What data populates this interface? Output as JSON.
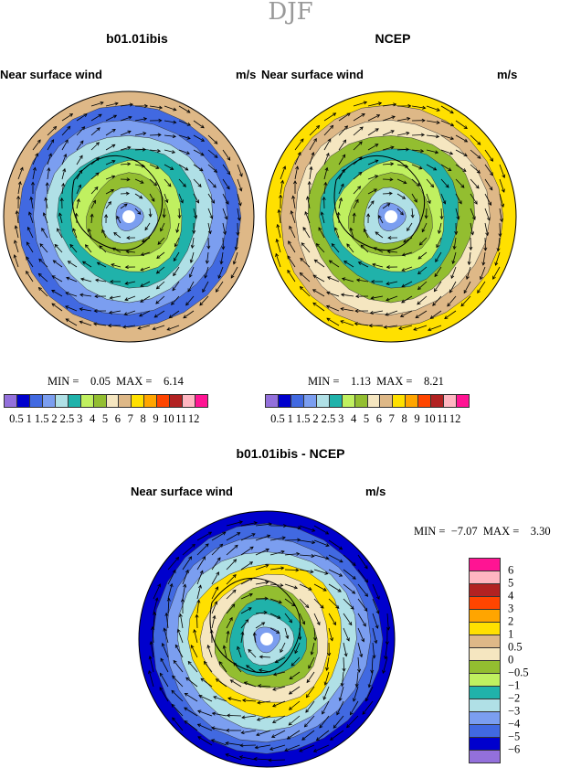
{
  "title": "DJF",
  "panels": [
    {
      "title": "b01.01ibis",
      "left_sub": "Near surface wind",
      "right_sub": "m/s",
      "min_label": "MIN =",
      "min": "0.05",
      "max_label": "MAX =",
      "max": "6.14"
    },
    {
      "title": "NCEP",
      "left_sub": "Near surface wind",
      "right_sub": "m/s",
      "min_label": "MIN =",
      "min": "1.13",
      "max_label": "MAX =",
      "max": "8.21"
    },
    {
      "title": "b01.01ibis - NCEP",
      "left_sub": "Near surface wind",
      "right_sub": "m/s",
      "min_label": "MIN =",
      "min": "−7.07",
      "max_label": "MAX =",
      "max": "3.30"
    }
  ],
  "colorbar": {
    "colors": [
      "#9370DB",
      "#0000CD",
      "#4169E1",
      "#7B9EF0",
      "#B0E0E6",
      "#20B2AA",
      "#C0F060",
      "#93BE30",
      "#F5E6C0",
      "#DEB887",
      "#FFE000",
      "#FFA500",
      "#FF4500",
      "#B22222",
      "#FFB6C1",
      "#FF1493"
    ],
    "labels": [
      "0.5",
      "1",
      "1.5",
      "2",
      "2.5",
      "3",
      "4",
      "5",
      "6",
      "7",
      "8",
      "9",
      "10",
      "11",
      "12"
    ],
    "diff_labels": [
      "6",
      "5",
      "4",
      "3",
      "2",
      "1",
      "0.5",
      "0",
      "−0.5",
      "−1",
      "−2",
      "−3",
      "−4",
      "−5",
      "−6"
    ]
  }
}
